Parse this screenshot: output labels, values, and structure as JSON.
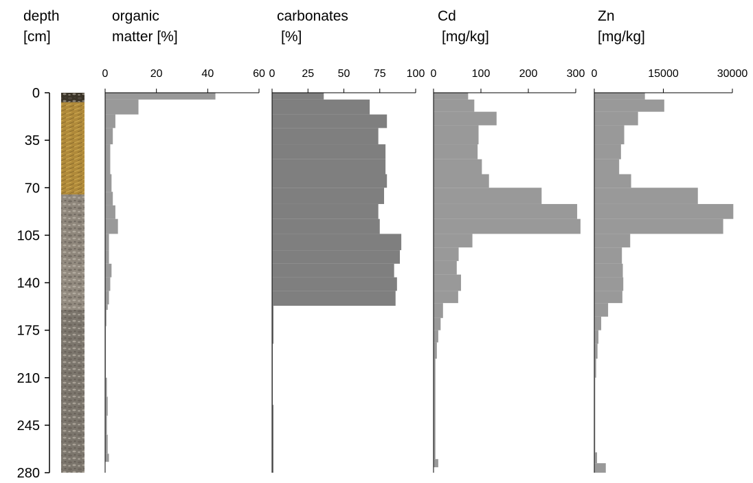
{
  "depth_axis": {
    "label_line1": "depth",
    "label_line2": "[cm]",
    "ticks": [
      "0",
      "35",
      "70",
      "105",
      "140",
      "175",
      "210",
      "245",
      "280"
    ],
    "min": 0,
    "max": 280
  },
  "core_photo": {
    "icon": "soil-core-photo",
    "zones": [
      {
        "from": 0,
        "to": 7,
        "color": "#3b3428"
      },
      {
        "from": 7,
        "to": 75,
        "color": "#b08a3a"
      },
      {
        "from": 75,
        "to": 125,
        "color": "#8f877c"
      },
      {
        "from": 125,
        "to": 160,
        "color": "#938b80"
      },
      {
        "from": 160,
        "to": 280,
        "color": "#7c766d"
      }
    ]
  },
  "panels": [
    {
      "id": "organic-matter",
      "title_line1": "organic",
      "title_line2": "matter [%]",
      "ticks": [
        "0",
        "20",
        "40",
        "60"
      ],
      "tick_values": [
        0,
        20,
        40,
        60
      ],
      "xmax": 60
    },
    {
      "id": "carbonates",
      "title_line1": "carbonates",
      "title_line2": "[%]",
      "ticks": [
        "0",
        "25",
        "50",
        "75",
        "100"
      ],
      "tick_values": [
        0,
        25,
        50,
        75,
        100
      ],
      "xmax": 100
    },
    {
      "id": "cd",
      "title_line1": "Cd",
      "title_line2": "[mg/kg]",
      "ticks": [
        "0",
        "100",
        "200",
        "300"
      ],
      "tick_values": [
        0,
        100,
        200,
        300
      ],
      "xmax": 300
    },
    {
      "id": "zn",
      "title_line1": "Zn",
      "title_line2": "[mg/kg]",
      "ticks": [
        "0",
        "15000",
        "30000"
      ],
      "tick_values": [
        0,
        15000,
        30000
      ],
      "xmax": 30000
    }
  ],
  "chart_data": {
    "type": "bar",
    "orientation": "horizontal",
    "y_axis": {
      "label": "depth [cm]",
      "range": [
        0,
        280
      ],
      "ticks": [
        0,
        35,
        70,
        105,
        140,
        175,
        210,
        245,
        280
      ],
      "inverted": true
    },
    "bar_colors": {
      "organic-matter": "#999999",
      "carbonates": "#7f7f7f",
      "cd": "#999999",
      "zn": "#999999"
    },
    "series": [
      {
        "id": "organic-matter",
        "xlim": [
          0,
          60
        ],
        "intervals": [
          {
            "top": 0,
            "bottom": 5,
            "value": 43
          },
          {
            "top": 5,
            "bottom": 16,
            "value": 13
          },
          {
            "top": 16,
            "bottom": 26,
            "value": 4
          },
          {
            "top": 26,
            "bottom": 38,
            "value": 3
          },
          {
            "top": 38,
            "bottom": 60,
            "value": 2
          },
          {
            "top": 60,
            "bottom": 73,
            "value": 2.5
          },
          {
            "top": 73,
            "bottom": 83,
            "value": 3
          },
          {
            "top": 83,
            "bottom": 93,
            "value": 4
          },
          {
            "top": 93,
            "bottom": 104,
            "value": 5
          },
          {
            "top": 104,
            "bottom": 116,
            "value": 1.5
          },
          {
            "top": 116,
            "bottom": 126,
            "value": 1.5
          },
          {
            "top": 126,
            "bottom": 136,
            "value": 2.5
          },
          {
            "top": 136,
            "bottom": 146,
            "value": 2
          },
          {
            "top": 146,
            "bottom": 156,
            "value": 1.5
          },
          {
            "top": 156,
            "bottom": 160,
            "value": 1
          },
          {
            "top": 160,
            "bottom": 172,
            "value": 0.5
          },
          {
            "top": 172,
            "bottom": 210,
            "value": 0.3
          },
          {
            "top": 210,
            "bottom": 224,
            "value": 0.7
          },
          {
            "top": 224,
            "bottom": 238,
            "value": 1
          },
          {
            "top": 238,
            "bottom": 252,
            "value": 0.7
          },
          {
            "top": 252,
            "bottom": 266,
            "value": 1
          },
          {
            "top": 266,
            "bottom": 272,
            "value": 1.5
          }
        ]
      },
      {
        "id": "carbonates",
        "xlim": [
          0,
          100
        ],
        "intervals": [
          {
            "top": 0,
            "bottom": 5,
            "value": 36
          },
          {
            "top": 5,
            "bottom": 16,
            "value": 68
          },
          {
            "top": 16,
            "bottom": 26,
            "value": 80
          },
          {
            "top": 26,
            "bottom": 38,
            "value": 74
          },
          {
            "top": 38,
            "bottom": 49,
            "value": 79
          },
          {
            "top": 49,
            "bottom": 60,
            "value": 79
          },
          {
            "top": 60,
            "bottom": 70,
            "value": 80
          },
          {
            "top": 70,
            "bottom": 82,
            "value": 78
          },
          {
            "top": 82,
            "bottom": 93,
            "value": 74
          },
          {
            "top": 93,
            "bottom": 104,
            "value": 75
          },
          {
            "top": 104,
            "bottom": 116,
            "value": 90
          },
          {
            "top": 116,
            "bottom": 126,
            "value": 89
          },
          {
            "top": 126,
            "bottom": 136,
            "value": 85
          },
          {
            "top": 136,
            "bottom": 146,
            "value": 87
          },
          {
            "top": 146,
            "bottom": 157,
            "value": 86
          },
          {
            "top": 157,
            "bottom": 185,
            "value": 1
          },
          {
            "top": 185,
            "bottom": 230,
            "value": 0.5
          },
          {
            "top": 230,
            "bottom": 262,
            "value": 1
          },
          {
            "top": 262,
            "bottom": 280,
            "value": 1
          }
        ]
      },
      {
        "id": "cd",
        "xlim": [
          0,
          300
        ],
        "intervals": [
          {
            "top": 0,
            "bottom": 5,
            "value": 73
          },
          {
            "top": 5,
            "bottom": 14,
            "value": 86
          },
          {
            "top": 14,
            "bottom": 24,
            "value": 133
          },
          {
            "top": 24,
            "bottom": 38,
            "value": 95
          },
          {
            "top": 38,
            "bottom": 49,
            "value": 93
          },
          {
            "top": 49,
            "bottom": 60,
            "value": 102
          },
          {
            "top": 60,
            "bottom": 70,
            "value": 117
          },
          {
            "top": 70,
            "bottom": 82,
            "value": 228
          },
          {
            "top": 82,
            "bottom": 93,
            "value": 303
          },
          {
            "top": 93,
            "bottom": 104,
            "value": 310
          },
          {
            "top": 104,
            "bottom": 114,
            "value": 82
          },
          {
            "top": 114,
            "bottom": 124,
            "value": 53
          },
          {
            "top": 124,
            "bottom": 134,
            "value": 49
          },
          {
            "top": 134,
            "bottom": 146,
            "value": 58
          },
          {
            "top": 146,
            "bottom": 155,
            "value": 52
          },
          {
            "top": 155,
            "bottom": 166,
            "value": 20
          },
          {
            "top": 166,
            "bottom": 175,
            "value": 15
          },
          {
            "top": 175,
            "bottom": 184,
            "value": 10
          },
          {
            "top": 184,
            "bottom": 196,
            "value": 7
          },
          {
            "top": 196,
            "bottom": 270,
            "value": 4
          },
          {
            "top": 270,
            "bottom": 276,
            "value": 10
          }
        ]
      },
      {
        "id": "zn",
        "xlim": [
          0,
          30000
        ],
        "intervals": [
          {
            "top": 0,
            "bottom": 5,
            "value": 11000
          },
          {
            "top": 5,
            "bottom": 14,
            "value": 15200
          },
          {
            "top": 14,
            "bottom": 24,
            "value": 9500
          },
          {
            "top": 24,
            "bottom": 38,
            "value": 6500
          },
          {
            "top": 38,
            "bottom": 49,
            "value": 5800
          },
          {
            "top": 49,
            "bottom": 60,
            "value": 5400
          },
          {
            "top": 60,
            "bottom": 70,
            "value": 8000
          },
          {
            "top": 70,
            "bottom": 82,
            "value": 22500
          },
          {
            "top": 82,
            "bottom": 93,
            "value": 30200
          },
          {
            "top": 93,
            "bottom": 104,
            "value": 28000
          },
          {
            "top": 104,
            "bottom": 114,
            "value": 7800
          },
          {
            "top": 114,
            "bottom": 126,
            "value": 6000
          },
          {
            "top": 126,
            "bottom": 136,
            "value": 6200
          },
          {
            "top": 136,
            "bottom": 146,
            "value": 6300
          },
          {
            "top": 146,
            "bottom": 155,
            "value": 6100
          },
          {
            "top": 155,
            "bottom": 165,
            "value": 3000
          },
          {
            "top": 165,
            "bottom": 175,
            "value": 1500
          },
          {
            "top": 175,
            "bottom": 185,
            "value": 900
          },
          {
            "top": 185,
            "bottom": 196,
            "value": 700
          },
          {
            "top": 196,
            "bottom": 210,
            "value": 400
          },
          {
            "top": 210,
            "bottom": 265,
            "value": 200
          },
          {
            "top": 265,
            "bottom": 273,
            "value": 600
          },
          {
            "top": 273,
            "bottom": 280,
            "value": 2500
          }
        ]
      }
    ]
  }
}
